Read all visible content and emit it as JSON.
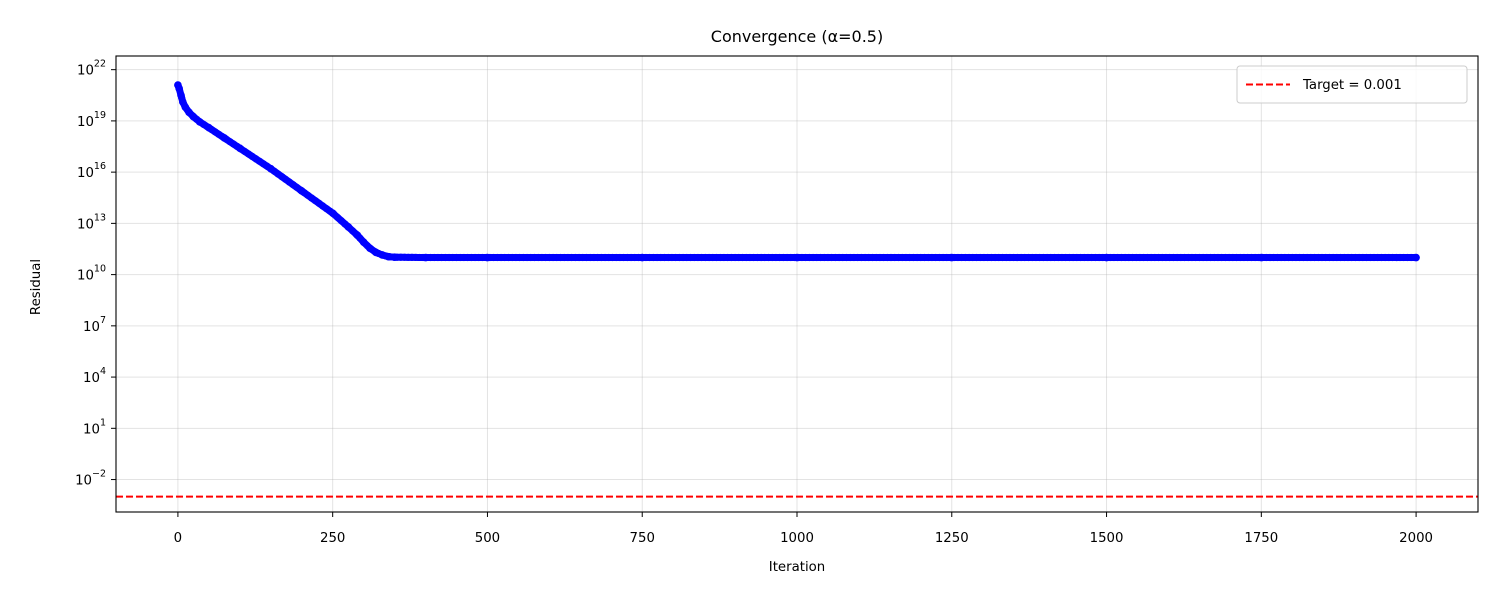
{
  "chart_data": {
    "type": "line",
    "title": "Convergence (α=0.5)",
    "xlabel": "Iteration",
    "ylabel": "Residual",
    "xlim": [
      -100,
      2100
    ],
    "ylim_log10": [
      -3.9,
      22.8
    ],
    "y_scale": "log",
    "grid": true,
    "legend_position": "top-right",
    "x_ticks": [
      0,
      250,
      500,
      750,
      1000,
      1250,
      1500,
      1750,
      2000
    ],
    "y_ticks": [
      {
        "base": "10",
        "exp": "22",
        "value_log10": 22
      },
      {
        "base": "10",
        "exp": "19",
        "value_log10": 19
      },
      {
        "base": "10",
        "exp": "16",
        "value_log10": 16
      },
      {
        "base": "10",
        "exp": "13",
        "value_log10": 13
      },
      {
        "base": "10",
        "exp": "10",
        "value_log10": 10
      },
      {
        "base": "10",
        "exp": "7",
        "value_log10": 7
      },
      {
        "base": "10",
        "exp": "4",
        "value_log10": 4
      },
      {
        "base": "10",
        "exp": "1",
        "value_log10": 1
      },
      {
        "base": "10",
        "exp": "−2",
        "value_log10": -2
      }
    ],
    "series": [
      {
        "color": "#0000ff",
        "marker": "o",
        "x": [
          0,
          2,
          5,
          8,
          12,
          18,
          25,
          35,
          50,
          75,
          100,
          150,
          200,
          250,
          275,
          290,
          300,
          310,
          320,
          330,
          340,
          350,
          400,
          500,
          750,
          1000,
          1250,
          1500,
          1750,
          2000
        ],
        "log10_y": [
          21.1,
          20.9,
          20.5,
          20.1,
          19.8,
          19.5,
          19.25,
          18.95,
          18.6,
          18.0,
          17.4,
          16.2,
          14.9,
          13.6,
          12.8,
          12.3,
          11.9,
          11.55,
          11.3,
          11.15,
          11.05,
          11.02,
          11.0,
          11.0,
          11.0,
          11.0,
          11.0,
          11.0,
          11.0,
          11.0
        ]
      },
      {
        "name": "Target = 0.001",
        "color": "#ff0000",
        "style": "dashed",
        "y": 0.001,
        "log10_y": -3
      }
    ]
  }
}
